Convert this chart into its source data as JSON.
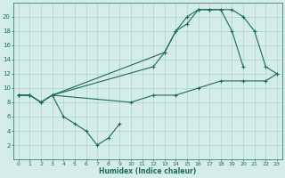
{
  "xlabel": "Humidex (Indice chaleur)",
  "bg_color": "#d4ede8",
  "grid_color": "#aed4cc",
  "line_color": "#1a6b5a",
  "xlim": [
    -0.5,
    23.5
  ],
  "ylim": [
    0,
    22
  ],
  "xticks": [
    0,
    1,
    2,
    3,
    4,
    5,
    6,
    7,
    8,
    9,
    10,
    11,
    12,
    13,
    14,
    15,
    16,
    17,
    18,
    19,
    20,
    21,
    22,
    23
  ],
  "yticks": [
    2,
    4,
    6,
    8,
    10,
    12,
    14,
    16,
    18,
    20
  ],
  "line1_x": [
    0,
    1,
    2,
    3,
    13,
    14,
    15,
    16,
    17,
    18,
    19,
    20,
    21,
    22,
    23
  ],
  "line1_y": [
    9,
    9,
    8,
    9,
    15,
    18,
    19,
    21,
    21,
    21,
    21,
    20,
    18,
    13,
    12
  ],
  "line2_x": [
    0,
    1,
    2,
    3,
    12,
    13,
    14,
    15,
    16,
    17,
    18,
    19,
    20
  ],
  "line2_y": [
    9,
    9,
    8,
    9,
    13,
    15,
    18,
    20,
    21,
    21,
    21,
    18,
    13
  ],
  "line3_x": [
    0,
    1,
    2,
    3,
    10,
    12,
    14,
    16,
    18,
    20,
    22,
    23
  ],
  "line3_y": [
    9,
    9,
    8,
    9,
    8,
    9,
    9,
    10,
    11,
    11,
    11,
    12
  ],
  "line4_x": [
    3,
    4,
    5,
    6,
    7,
    8,
    9
  ],
  "line4_y": [
    9,
    6,
    5,
    4,
    2,
    3,
    5
  ]
}
